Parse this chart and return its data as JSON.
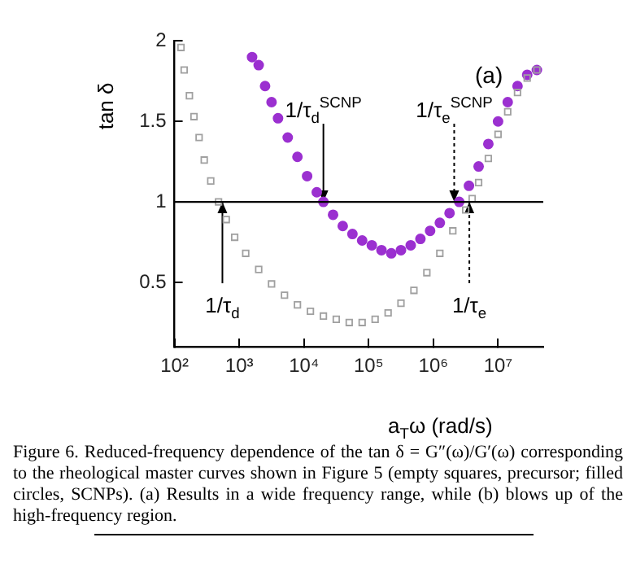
{
  "chart_data": {
    "type": "scatter",
    "xlabel": "a$_{T}$ω (rad/s)",
    "ylabel": "tan δ",
    "log": "x",
    "legend": false,
    "grid": false,
    "xlim": [
      100,
      50000000
    ],
    "xticks": [
      {
        "value": 100,
        "label": "10²"
      },
      {
        "value": 1000,
        "label": "10³"
      },
      {
        "value": 10000,
        "label": "10⁴"
      },
      {
        "value": 100000,
        "label": "10⁵"
      },
      {
        "value": 1000000,
        "label": "10⁶"
      },
      {
        "value": 10000000,
        "label": "10⁷"
      }
    ],
    "ylim": [
      0.1,
      2
    ],
    "yticks": [
      0.5,
      1,
      1.5,
      2
    ],
    "series": [
      {
        "color": "#a0a0a0",
        "marker": "square",
        "x": [
          126,
          141,
          170,
          200,
          240,
          288,
          363,
          479,
          631,
          851,
          1260,
          2000,
          3160,
          5010,
          7940,
          12600,
          20000,
          31600,
          50100,
          79400,
          126000,
          200000,
          316000,
          501000,
          794000,
          1260000,
          2000000,
          3160000,
          3980000,
          5010000,
          7080000,
          10000000,
          14100000,
          20000000,
          28200000,
          39800000
        ],
        "values": [
          1.96,
          1.82,
          1.66,
          1.53,
          1.4,
          1.26,
          1.13,
          1.0,
          0.89,
          0.78,
          0.68,
          0.58,
          0.49,
          0.42,
          0.36,
          0.32,
          0.29,
          0.27,
          0.25,
          0.25,
          0.27,
          0.31,
          0.37,
          0.45,
          0.56,
          0.68,
          0.82,
          0.95,
          1.02,
          1.12,
          1.27,
          1.42,
          1.56,
          1.68,
          1.77,
          1.82
        ]
      },
      {
        "color": "#9b30d0",
        "marker": "circle",
        "x": [
          1580,
          2000,
          2510,
          3160,
          3980,
          5620,
          7940,
          11200,
          15800,
          20000,
          28200,
          39800,
          56200,
          79400,
          112000,
          158000,
          224000,
          316000,
          447000,
          631000,
          891000,
          1260000,
          1780000,
          2510000,
          3550000,
          5010000,
          7080000,
          10000000,
          14100000,
          20000000,
          28200000,
          39800000
        ],
        "values": [
          1.9,
          1.85,
          1.72,
          1.62,
          1.52,
          1.4,
          1.28,
          1.16,
          1.06,
          1.0,
          0.92,
          0.85,
          0.8,
          0.76,
          0.73,
          0.7,
          0.68,
          0.7,
          0.73,
          0.77,
          0.82,
          0.87,
          0.93,
          1.0,
          1.1,
          1.22,
          1.36,
          1.5,
          1.62,
          1.72,
          1.79,
          1.82
        ]
      }
    ],
    "ref_lines": [
      {
        "axis": "y",
        "value": 1,
        "color": "#000000"
      }
    ],
    "annotations": [
      {
        "text": "1/τ$_{d}$$^{SCNP}$",
        "x": 20000,
        "y": 1
      },
      {
        "text": "1/τ$_{e}$$^{SCNP}$",
        "x": 2100000,
        "y": 1
      },
      {
        "text": "1/τ$_{d}$",
        "x": 550,
        "y": 1
      },
      {
        "text": "1/τ$_{e}$",
        "x": 3600000,
        "y": 1
      },
      "(a)",
      "Figure 6. Reduced-frequency dependence of the tan δ = G″(ω)/G′(ω) corresponding to the rheological master curves shown in Figure 5 (empty squares, precursor; filled circles, SCNPs). (a) Results in a wide frequency range, while (b) blows up of the high-frequency region."
    ]
  }
}
